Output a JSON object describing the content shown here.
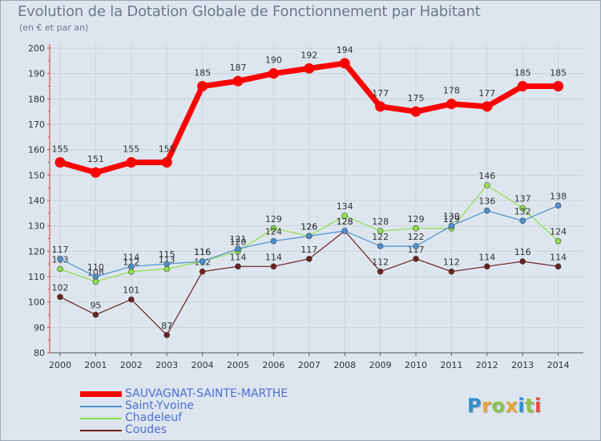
{
  "title": "Evolution de la Dotation Globale de Fonctionnement par Habitant",
  "subtitle": "(en € et par an)",
  "logo": {
    "text": "Proxiti",
    "colors": [
      "#2f8fcf",
      "#e8a43a",
      "#8bc34a",
      "#e8a43a",
      "#2f8fcf",
      "#8bc34a",
      "#e84a3a"
    ]
  },
  "chart_data": {
    "type": "line",
    "x": [
      2000,
      2001,
      2002,
      2003,
      2004,
      2005,
      2006,
      2007,
      2008,
      2009,
      2010,
      2011,
      2012,
      2013,
      2014
    ],
    "ylim": [
      80,
      200
    ],
    "yticks": [
      80,
      90,
      100,
      110,
      120,
      130,
      140,
      150,
      160,
      170,
      180,
      190,
      200
    ],
    "grid": true,
    "legend_placement": "bottom-left",
    "series": [
      {
        "name": "SAUVAGNAT-SAINTE-MARTHE",
        "color": "#ff0000",
        "values": [
          155,
          151,
          155,
          155,
          185,
          187,
          190,
          192,
          194,
          177,
          175,
          178,
          177,
          185,
          185
        ]
      },
      {
        "name": "Saint-Yvoine",
        "color": "#4a90d0",
        "values": [
          117,
          110,
          114,
          115,
          116,
          121,
          124,
          126,
          128,
          122,
          122,
          130,
          136,
          132,
          138
        ]
      },
      {
        "name": "Chadeleuf",
        "color": "#8ee04a",
        "values": [
          113,
          108,
          112,
          113,
          116,
          120,
          129,
          126,
          134,
          128,
          129,
          129,
          146,
          137,
          124
        ]
      },
      {
        "name": "Coudes",
        "color": "#6b1f1f",
        "values": [
          102,
          95,
          101,
          87,
          112,
          114,
          114,
          117,
          128,
          112,
          117,
          112,
          114,
          116,
          114
        ]
      }
    ]
  }
}
